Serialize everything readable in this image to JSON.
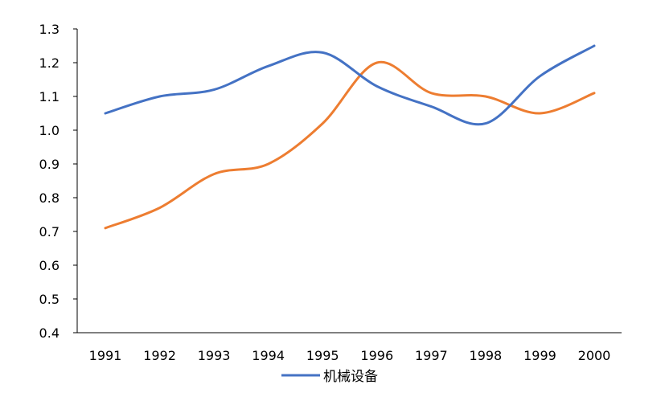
{
  "chart_data": {
    "type": "line",
    "x": [
      "1991",
      "1992",
      "1993",
      "1994",
      "1995",
      "1996",
      "1997",
      "1998",
      "1999",
      "2000"
    ],
    "ylim": [
      0.4,
      1.3
    ],
    "yticks": [
      "0.4",
      "0.5",
      "0.6",
      "0.7",
      "0.8",
      "0.9",
      "1.0",
      "1.1",
      "1.2",
      "1.3"
    ],
    "grid": false,
    "legend_position": "bottom",
    "series": [
      {
        "name": "机械设备",
        "color": "#4472C4",
        "values": [
          1.05,
          1.1,
          1.12,
          1.19,
          1.23,
          1.13,
          1.07,
          1.02,
          1.16,
          1.25
        ]
      },
      {
        "color": "#ED7D31",
        "values": [
          0.71,
          0.77,
          0.87,
          0.9,
          1.02,
          1.2,
          1.11,
          1.1,
          1.05,
          1.11
        ]
      }
    ]
  }
}
